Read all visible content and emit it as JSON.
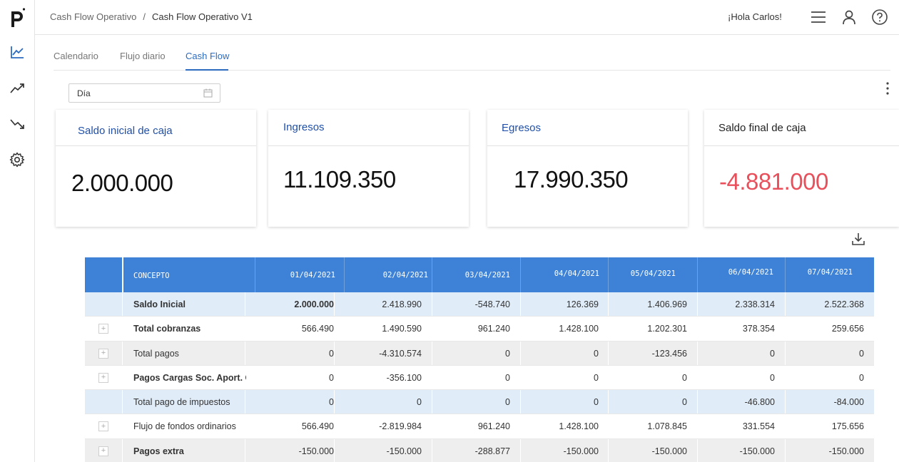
{
  "sidebar": {
    "logo_text": "p",
    "items": [
      {
        "icon": "line-chart-icon"
      },
      {
        "icon": "trending-up-icon"
      },
      {
        "icon": "trending-down-icon"
      },
      {
        "icon": "gear-icon"
      }
    ]
  },
  "header": {
    "breadcrumb": [
      "Cash Flow Operativo",
      "/",
      "Cash Flow Operativo V1"
    ],
    "greeting": "¡Hola Carlos!",
    "icons": [
      "menu-icon",
      "user-icon",
      "help-icon"
    ]
  },
  "tabs": [
    {
      "label": "Calendario",
      "active": false
    },
    {
      "label": "Flujo diario",
      "active": false
    },
    {
      "label": "Cash Flow",
      "active": true
    }
  ],
  "filter": {
    "period_value": "Día"
  },
  "cards": [
    {
      "title": "Saldo inicial de caja",
      "value": "2.000.000",
      "title_color": "#1f4fa8",
      "value_color": "#111111"
    },
    {
      "title": "Ingresos",
      "value": "11.109.350",
      "title_color": "#1f4fa8",
      "value_color": "#111111"
    },
    {
      "title": "Egresos",
      "value": "17.990.350",
      "title_color": "#1f4fa8",
      "value_color": "#111111"
    },
    {
      "title": "Saldo final de caja",
      "value": "-4.881.000",
      "title_color": "#222222",
      "value_color": "#e8505b"
    }
  ],
  "table": {
    "headers": [
      "CONCEPTO",
      "01/04/2021",
      "02/04/2021",
      "03/04/2021",
      "04/04/2021",
      "05/04/2021",
      "06/04/2021",
      "07/04/2021"
    ],
    "rows": [
      {
        "label": "Saldo Inicial",
        "bold": true,
        "expander": false,
        "style": "blue",
        "values": [
          "2.000.000",
          "2.418.990",
          "-548.740",
          "126.369",
          "1.406.969",
          "2.338.314",
          "2.522.368"
        ]
      },
      {
        "label": "Total cobranzas",
        "bold": true,
        "expander": true,
        "style": "white",
        "values": [
          "566.490",
          "1.490.590",
          "961.240",
          "1.428.100",
          "1.202.301",
          "378.354",
          "259.656"
        ]
      },
      {
        "label": "Total pagos",
        "bold": false,
        "expander": true,
        "style": "gray",
        "values": [
          "0",
          "-4.310.574",
          "0",
          "0",
          "-123.456",
          "0",
          "0"
        ]
      },
      {
        "label": "Pagos Cargas Soc. Aport. C",
        "bold": true,
        "expander": true,
        "style": "white",
        "values": [
          "0",
          "-356.100",
          "0",
          "0",
          "0",
          "0",
          "0"
        ]
      },
      {
        "label": "Total pago de impuestos",
        "bold": false,
        "expander": false,
        "style": "blue",
        "values": [
          "0",
          "0",
          "0",
          "0",
          "0",
          "-46.800",
          "-84.000"
        ]
      },
      {
        "label": "Flujo de fondos ordinarios",
        "bold": false,
        "expander": true,
        "style": "white",
        "values": [
          "566.490",
          "-2.819.984",
          "961.240",
          "1.428.100",
          "1.078.845",
          "331.554",
          "175.656"
        ]
      },
      {
        "label": "Pagos extra",
        "bold": true,
        "expander": true,
        "style": "gray",
        "values": [
          "-150.000",
          "-150.000",
          "-288.877",
          "-150.000",
          "-150.000",
          "-150.000",
          "-150.000"
        ]
      }
    ]
  },
  "colors": {
    "accent": "#2d6bbf",
    "table_header": "#3d82d6",
    "negative": "#e8505b"
  }
}
